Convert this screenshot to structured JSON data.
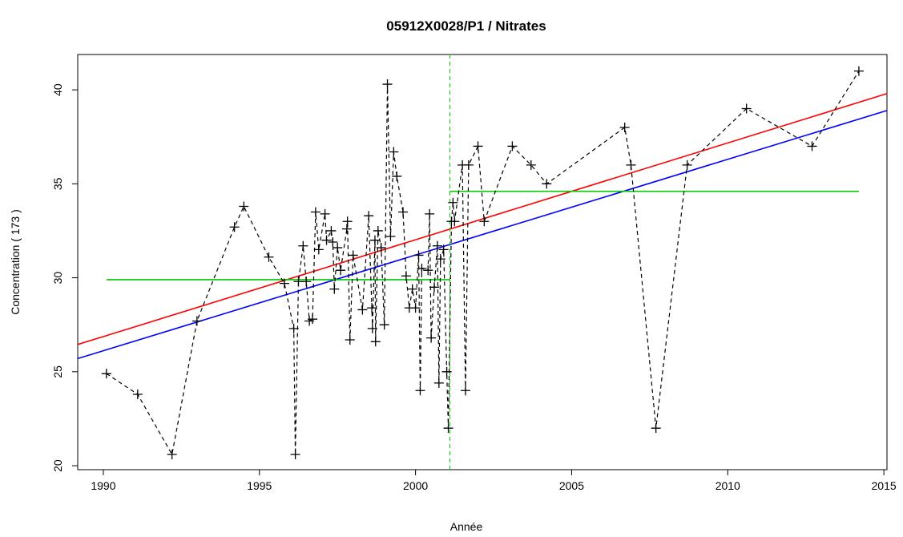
{
  "chart_data": {
    "type": "scatter",
    "title": "05912X0028/P1 / Nitrates",
    "x_label": "Année",
    "y_label": "Concentration ( 173 )",
    "xlim": [
      1989.18,
      2015.1
    ],
    "ylim": [
      19.79,
      41.88
    ],
    "xticks": [
      1990,
      1995,
      2000,
      2005,
      2010,
      2015
    ],
    "yticks": [
      20,
      25,
      30,
      35,
      40
    ],
    "series": [
      {
        "color": "#000000",
        "x": [
          1990.1,
          1991.1,
          1992.2,
          1993.0,
          1994.2,
          1994.5,
          1995.3,
          1995.8,
          1996.1,
          1996.15,
          1996.25,
          1996.4,
          1996.5,
          1996.6,
          1996.7,
          1996.8,
          1996.9,
          1997.1,
          1997.15,
          1997.3,
          1997.35,
          1997.4,
          1997.5,
          1997.6,
          1997.8,
          1997.82,
          1997.9,
          1998.0,
          1998.3,
          1998.5,
          1998.6,
          1998.62,
          1998.7,
          1998.72,
          1998.8,
          1998.9,
          1999.0,
          1999.1,
          1999.2,
          1999.3,
          1999.4,
          1999.6,
          1999.7,
          1999.8,
          1999.9,
          2000.0,
          2000.1,
          2000.15,
          2000.2,
          2000.4,
          2000.45,
          2000.5,
          2000.6,
          2000.7,
          2000.75,
          2000.8,
          2000.9,
          2001.0,
          2001.05,
          2001.15,
          2001.2,
          2001.25,
          2001.5,
          2001.6,
          2001.7,
          2002.0,
          2002.2,
          2003.1,
          2003.7,
          2004.2,
          2006.7,
          2006.9,
          2007.7,
          2008.7,
          2010.6,
          2012.7,
          2014.2
        ],
        "values": [
          24.9,
          23.8,
          20.6,
          27.7,
          32.7,
          33.8,
          31.1,
          29.7,
          27.3,
          20.6,
          29.8,
          31.7,
          29.8,
          27.7,
          27.8,
          33.5,
          31.5,
          33.4,
          32.0,
          32.5,
          31.9,
          29.4,
          31.6,
          30.4,
          32.6,
          33.0,
          26.7,
          31.2,
          28.3,
          33.3,
          28.4,
          27.3,
          32.0,
          26.6,
          32.5,
          31.6,
          27.5,
          40.3,
          32.2,
          36.7,
          35.4,
          33.5,
          30.1,
          28.4,
          29.4,
          28.4,
          31.2,
          24.0,
          30.5,
          30.4,
          33.4,
          26.8,
          29.5,
          31.7,
          24.4,
          31.0,
          31.5,
          25.0,
          22.0,
          33.0,
          34.0,
          33.0,
          36.0,
          24.0,
          36.0,
          37.0,
          33.0,
          37.0,
          36.0,
          35.0,
          38.0,
          36.0,
          22.0,
          36.0,
          39.0,
          37.0,
          41.0
        ]
      }
    ],
    "lines": [
      {
        "color": "#ff0000",
        "x": [
          1989.18,
          2015.1
        ],
        "values": [
          26.45,
          39.8
        ]
      },
      {
        "color": "#0000ff",
        "x": [
          1989.18,
          2015.1
        ],
        "values": [
          25.7,
          38.9
        ]
      },
      {
        "color": "#00cc00",
        "x": [
          1990.1,
          2001.1
        ],
        "values": [
          29.9,
          29.9
        ]
      },
      {
        "color": "#00cc00",
        "x": [
          2001.1,
          2014.2
        ],
        "values": [
          34.6,
          34.6
        ]
      }
    ],
    "vline": {
      "x": 2001.1,
      "color": "#00cc00"
    }
  }
}
